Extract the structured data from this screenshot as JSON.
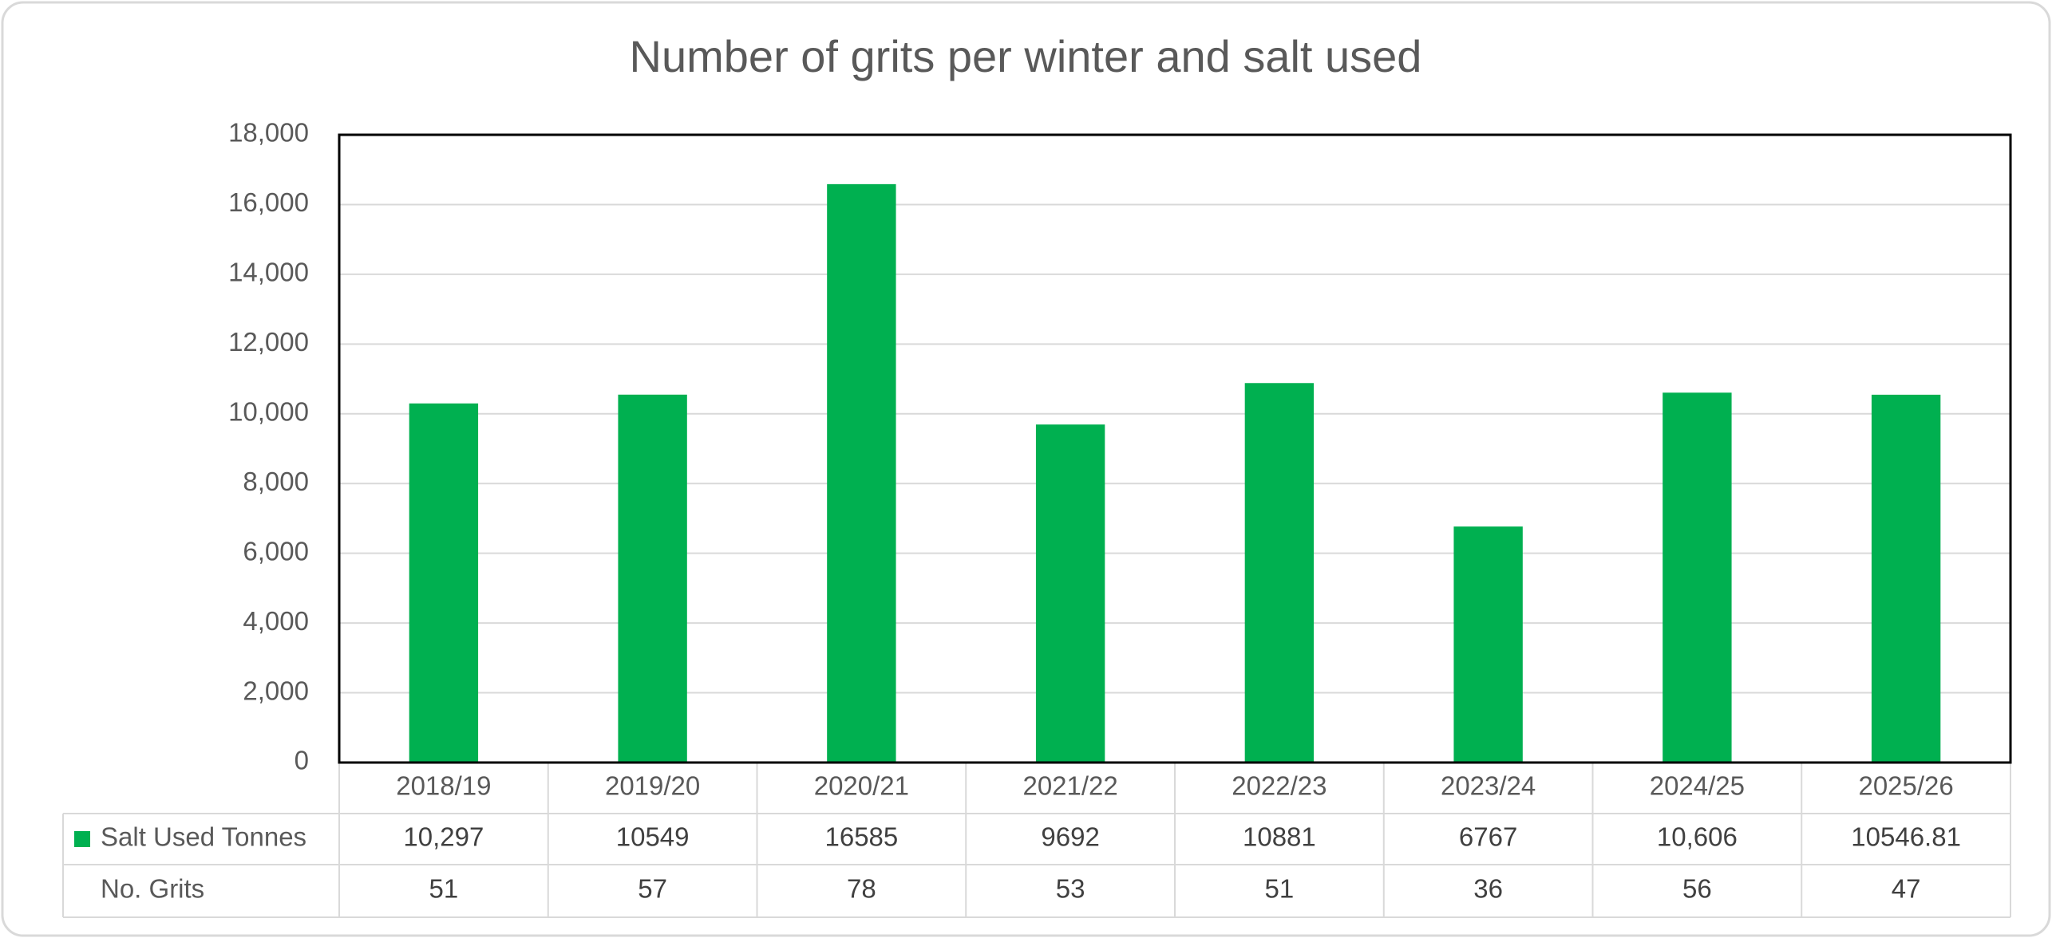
{
  "chart_data": {
    "type": "bar",
    "title": "Number of grits per winter and salt used",
    "categories": [
      "2018/19",
      "2019/20",
      "2020/21",
      "2021/22",
      "2022/23",
      "2023/24",
      "2024/25",
      "2025/26"
    ],
    "series": [
      {
        "name": "Salt Used Tonnes",
        "color": "#00b050",
        "values": [
          10297,
          10549,
          16585,
          9692,
          10881,
          6767,
          10606,
          10546.81
        ],
        "value_labels": [
          "10,297",
          "10549",
          "16585",
          "9692",
          "10881",
          "6767",
          "10,606",
          "10546.81"
        ]
      },
      {
        "name": "No. Grits",
        "values": [
          51,
          57,
          78,
          53,
          51,
          36,
          56,
          47
        ]
      }
    ],
    "ylim": [
      0,
      18000
    ],
    "yticks": [
      0,
      {
        "value": 2000,
        "label": "2,000"
      },
      {
        "value": 4000,
        "label": "4,000"
      },
      {
        "value": 6000,
        "label": "6,000"
      },
      {
        "value": 8000,
        "label": "8,000"
      },
      {
        "value": 10000,
        "label": "10,000"
      },
      {
        "value": 12000,
        "label": "12,000"
      },
      {
        "value": 14000,
        "label": "14,000"
      },
      {
        "value": 16000,
        "label": "16,000"
      },
      {
        "value": 18000,
        "label": "18,000"
      }
    ],
    "grid": true
  }
}
